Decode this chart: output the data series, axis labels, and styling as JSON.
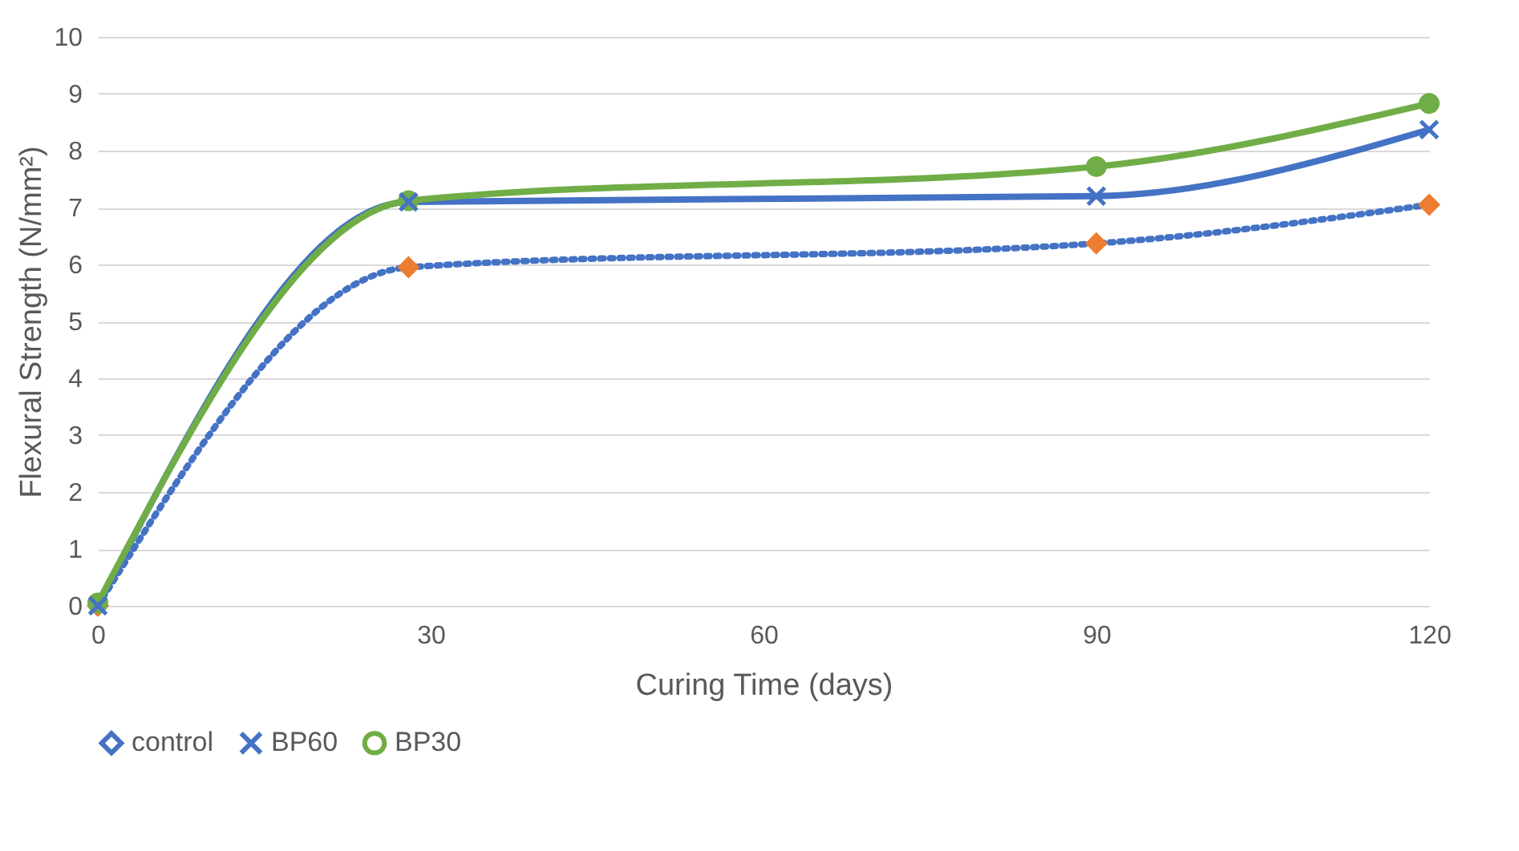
{
  "chart_data": {
    "type": "line",
    "xlabel": "Curing Time (days)",
    "ylabel": "Flexural Strength (N/mm²)",
    "x": [
      0,
      28,
      90,
      120
    ],
    "series": [
      {
        "name": "control",
        "color": "#4472c4",
        "colors": [
          "#ed7d31",
          "#ed7d31",
          "#ed7d31",
          "#ed7d31"
        ],
        "line_style": "dotted",
        "marker": "diamond",
        "values": [
          0,
          5.95,
          6.37,
          7.05
        ]
      },
      {
        "name": "BP60",
        "color": "#4472c4",
        "line_style": "solid",
        "marker": "cross",
        "values": [
          0,
          7.1,
          7.2,
          8.37
        ]
      },
      {
        "name": "BP30",
        "color": "#70ad47",
        "line_style": "solid",
        "marker": "circle",
        "values": [
          0.05,
          7.12,
          7.72,
          8.83
        ]
      }
    ],
    "xlim": [
      0,
      120
    ],
    "xticks": [
      0,
      30,
      60,
      90,
      120
    ],
    "ylim": [
      0,
      10
    ],
    "yticks": [
      0,
      1,
      2,
      3,
      4,
      5,
      6,
      7,
      8,
      9,
      10
    ],
    "grid": "y",
    "legend": "bottom"
  }
}
